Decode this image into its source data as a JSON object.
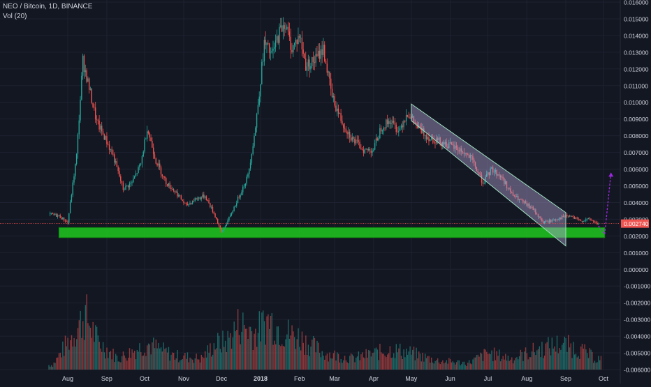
{
  "legend": {
    "symbol_line": "NEO / Bitcoin, 1D, BINANCE",
    "volume_line": "Vol (20)"
  },
  "price_label": {
    "value": "0.002740",
    "color": "#ef5350"
  },
  "colors": {
    "background": "#131722",
    "grid": "#1e2230",
    "up": "#26a69a",
    "down": "#ef5350",
    "support_zone": "#1fbf1f",
    "channel_fill": "#b7a6dc",
    "projection_arrow": "#9c27e0",
    "axis_text": "#d1d4dc"
  },
  "chart_data": {
    "type": "candlestick",
    "title": "NEO / Bitcoin, 1D, BINANCE",
    "xlabel": "",
    "ylabel": "",
    "x_tick_labels": [
      "Aug",
      "Sep",
      "Oct",
      "Nov",
      "Dec",
      "2018",
      "Feb",
      "Mar",
      "Apr",
      "May",
      "Jun",
      "Jul",
      "Aug",
      "Sep",
      "Oct"
    ],
    "y_tick_labels": [
      "0.016000",
      "0.015000",
      "0.014000",
      "0.013000",
      "0.012000",
      "0.011000",
      "0.010000",
      "0.009000",
      "0.008000",
      "0.007000",
      "0.006000",
      "0.005000",
      "0.004000",
      "0.003000",
      "0.002000",
      "0.001000",
      "0.000000",
      "-0.001000",
      "-0.002000",
      "-0.003000",
      "-0.004000",
      "-0.005000",
      "-0.006000"
    ],
    "ylim": [
      -0.006,
      0.016
    ],
    "grid": true,
    "price_path": [
      {
        "date": "2017-07-18",
        "value": 0.0033
      },
      {
        "date": "2017-07-25",
        "value": 0.0032
      },
      {
        "date": "2017-08-01",
        "value": 0.0028
      },
      {
        "date": "2017-08-08",
        "value": 0.0068
      },
      {
        "date": "2017-08-13",
        "value": 0.0125
      },
      {
        "date": "2017-08-17",
        "value": 0.0112
      },
      {
        "date": "2017-08-24",
        "value": 0.0088
      },
      {
        "date": "2017-08-31",
        "value": 0.0078
      },
      {
        "date": "2017-09-06",
        "value": 0.0068
      },
      {
        "date": "2017-09-14",
        "value": 0.0048
      },
      {
        "date": "2017-09-21",
        "value": 0.0052
      },
      {
        "date": "2017-09-28",
        "value": 0.0063
      },
      {
        "date": "2017-10-03",
        "value": 0.0085
      },
      {
        "date": "2017-10-10",
        "value": 0.0065
      },
      {
        "date": "2017-10-18",
        "value": 0.0052
      },
      {
        "date": "2017-10-26",
        "value": 0.0046
      },
      {
        "date": "2017-11-03",
        "value": 0.0038
      },
      {
        "date": "2017-11-10",
        "value": 0.0042
      },
      {
        "date": "2017-11-18",
        "value": 0.0044
      },
      {
        "date": "2017-11-26",
        "value": 0.0032
      },
      {
        "date": "2017-12-01",
        "value": 0.0022
      },
      {
        "date": "2017-12-08",
        "value": 0.0032
      },
      {
        "date": "2017-12-15",
        "value": 0.0044
      },
      {
        "date": "2017-12-22",
        "value": 0.0056
      },
      {
        "date": "2017-12-28",
        "value": 0.0085
      },
      {
        "date": "2018-01-04",
        "value": 0.0135
      },
      {
        "date": "2018-01-10",
        "value": 0.0128
      },
      {
        "date": "2018-01-16",
        "value": 0.0142
      },
      {
        "date": "2018-01-20",
        "value": 0.0148
      },
      {
        "date": "2018-01-26",
        "value": 0.0132
      },
      {
        "date": "2018-02-01",
        "value": 0.014
      },
      {
        "date": "2018-02-06",
        "value": 0.0122
      },
      {
        "date": "2018-02-13",
        "value": 0.0125
      },
      {
        "date": "2018-02-20",
        "value": 0.0132
      },
      {
        "date": "2018-02-27",
        "value": 0.0103
      },
      {
        "date": "2018-03-07",
        "value": 0.0088
      },
      {
        "date": "2018-03-15",
        "value": 0.0078
      },
      {
        "date": "2018-03-25",
        "value": 0.0071
      },
      {
        "date": "2018-04-01",
        "value": 0.0072
      },
      {
        "date": "2018-04-07",
        "value": 0.0085
      },
      {
        "date": "2018-04-14",
        "value": 0.0089
      },
      {
        "date": "2018-04-21",
        "value": 0.0083
      },
      {
        "date": "2018-04-28",
        "value": 0.0094
      },
      {
        "date": "2018-05-07",
        "value": 0.0084
      },
      {
        "date": "2018-05-15",
        "value": 0.0079
      },
      {
        "date": "2018-05-23",
        "value": 0.0077
      },
      {
        "date": "2018-06-01",
        "value": 0.0074
      },
      {
        "date": "2018-06-10",
        "value": 0.0071
      },
      {
        "date": "2018-06-18",
        "value": 0.0066
      },
      {
        "date": "2018-06-27",
        "value": 0.0052
      },
      {
        "date": "2018-07-04",
        "value": 0.006
      },
      {
        "date": "2018-07-12",
        "value": 0.0055
      },
      {
        "date": "2018-07-20",
        "value": 0.0045
      },
      {
        "date": "2018-07-29",
        "value": 0.004
      },
      {
        "date": "2018-08-06",
        "value": 0.0036
      },
      {
        "date": "2018-08-14",
        "value": 0.0028
      },
      {
        "date": "2018-08-20",
        "value": 0.0029
      },
      {
        "date": "2018-08-28",
        "value": 0.0031
      },
      {
        "date": "2018-09-04",
        "value": 0.0032
      },
      {
        "date": "2018-09-12",
        "value": 0.0029
      },
      {
        "date": "2018-09-20",
        "value": 0.003
      },
      {
        "date": "2018-09-27",
        "value": 0.0027
      }
    ],
    "volume_profile": [
      {
        "date": "2017-07-20",
        "value": 0.05
      },
      {
        "date": "2017-08-05",
        "value": 0.38
      },
      {
        "date": "2017-08-15",
        "value": 0.6
      },
      {
        "date": "2017-08-25",
        "value": 0.3
      },
      {
        "date": "2017-09-10",
        "value": 0.12
      },
      {
        "date": "2017-10-03",
        "value": 0.28
      },
      {
        "date": "2017-10-25",
        "value": 0.15
      },
      {
        "date": "2017-11-15",
        "value": 0.12
      },
      {
        "date": "2017-11-26",
        "value": 0.28
      },
      {
        "date": "2017-12-05",
        "value": 0.3
      },
      {
        "date": "2017-12-15",
        "value": 0.5
      },
      {
        "date": "2017-12-28",
        "value": 0.4
      },
      {
        "date": "2018-01-08",
        "value": 0.55
      },
      {
        "date": "2018-01-18",
        "value": 0.42
      },
      {
        "date": "2018-02-01",
        "value": 0.35
      },
      {
        "date": "2018-02-20",
        "value": 0.18
      },
      {
        "date": "2018-03-15",
        "value": 0.12
      },
      {
        "date": "2018-04-15",
        "value": 0.22
      },
      {
        "date": "2018-05-01",
        "value": 0.18
      },
      {
        "date": "2018-05-20",
        "value": 0.1
      },
      {
        "date": "2018-06-15",
        "value": 0.07
      },
      {
        "date": "2018-07-01",
        "value": 0.18
      },
      {
        "date": "2018-07-20",
        "value": 0.12
      },
      {
        "date": "2018-08-10",
        "value": 0.22
      },
      {
        "date": "2018-08-28",
        "value": 0.28
      },
      {
        "date": "2018-09-12",
        "value": 0.22
      },
      {
        "date": "2018-09-25",
        "value": 0.12
      }
    ],
    "annotations": [
      {
        "kind": "support_zone",
        "from": "2017-07-25",
        "to": "2018-10-02",
        "low": 0.0019,
        "high": 0.0025
      },
      {
        "kind": "descending_channel",
        "upper_start": {
          "date": "2018-05-01",
          "value": 0.0099
        },
        "upper_end": {
          "date": "2018-09-01",
          "value": 0.0034
        },
        "lower_start": {
          "date": "2018-05-01",
          "value": 0.0089
        },
        "lower_end": {
          "date": "2018-09-01",
          "value": 0.0014
        }
      },
      {
        "kind": "projection_arrow",
        "points": [
          {
            "date": "2018-09-27",
            "value": 0.0026
          },
          {
            "date": "2018-10-02",
            "value": 0.0021
          },
          {
            "date": "2018-10-07",
            "value": 0.0058
          }
        ]
      },
      {
        "kind": "current_price_line",
        "value": 0.00274
      }
    ]
  }
}
